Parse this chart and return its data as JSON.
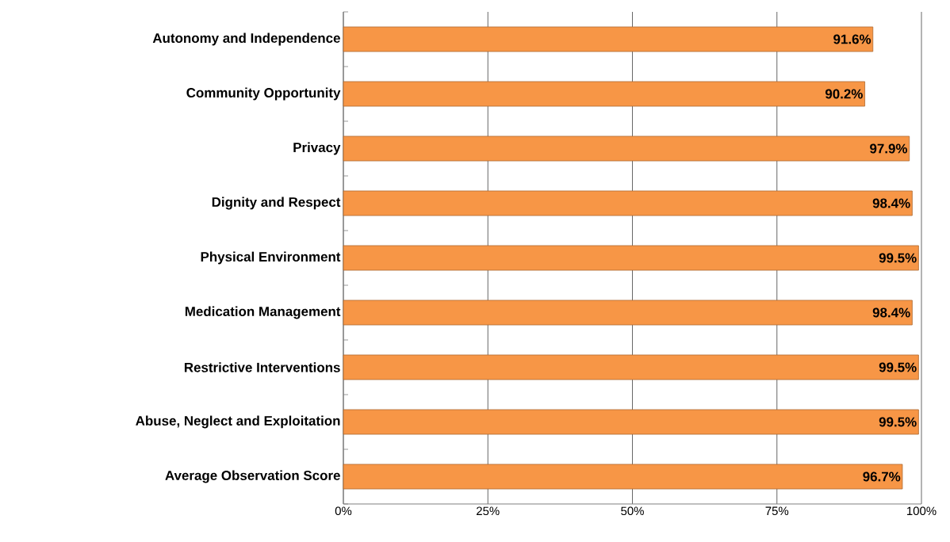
{
  "chart_data": {
    "type": "bar",
    "orientation": "horizontal",
    "categories": [
      "Autonomy and Independence",
      "Community Opportunity",
      "Privacy",
      "Dignity and Respect",
      "Physical Environment",
      "Medication Management",
      "Restrictive Interventions",
      "Abuse, Neglect and Exploitation",
      "Average Observation Score"
    ],
    "values": [
      91.6,
      90.2,
      97.9,
      98.4,
      99.5,
      98.4,
      99.5,
      99.5,
      96.7
    ],
    "value_labels": [
      "91.6%",
      "90.2%",
      "97.9%",
      "98.4%",
      "99.5%",
      "98.4%",
      "99.5%",
      "99.5%",
      "96.7%"
    ],
    "color": "#f79646",
    "xlim": [
      0,
      100
    ],
    "xticks": [
      {
        "value": 0,
        "label": "0%"
      },
      {
        "value": 25,
        "label": "25%"
      },
      {
        "value": 50,
        "label": "50%"
      },
      {
        "value": 75,
        "label": "75%"
      },
      {
        "value": 100,
        "label": "100%"
      }
    ],
    "grid": "x"
  }
}
